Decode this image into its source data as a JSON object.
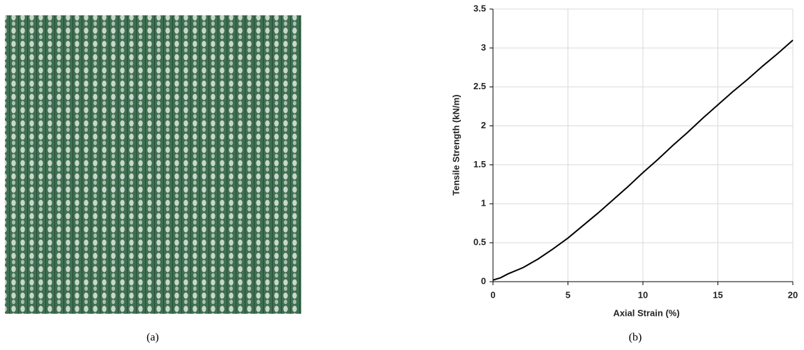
{
  "chart_data": {
    "type": "line",
    "x": [
      0,
      0.5,
      1,
      2,
      3,
      4,
      5,
      6,
      7,
      8,
      9,
      10,
      11,
      12,
      13,
      14,
      15,
      16,
      17,
      18,
      19,
      20
    ],
    "values": [
      0.02,
      0.05,
      0.1,
      0.18,
      0.29,
      0.42,
      0.56,
      0.72,
      0.88,
      1.05,
      1.22,
      1.4,
      1.57,
      1.75,
      1.92,
      2.1,
      2.27,
      2.44,
      2.6,
      2.77,
      2.93,
      3.1
    ],
    "color": "#000000",
    "xlabel": "Axial Strain (%)",
    "ylabel": "Tensile Strength (kN/m)",
    "xlim": [
      0,
      20
    ],
    "xticks": [
      0,
      5,
      10,
      15,
      20
    ],
    "ylim": [
      0,
      3.5
    ],
    "yticks": [
      0,
      0.5,
      1,
      1.5,
      2,
      2.5,
      3,
      3.5
    ],
    "grid": true
  },
  "captions": [
    "(a)",
    "(b)"
  ]
}
